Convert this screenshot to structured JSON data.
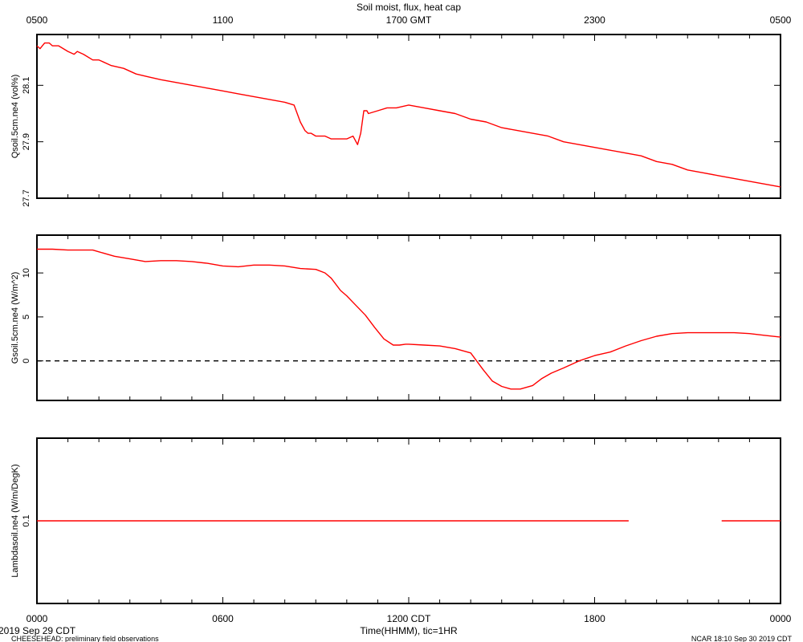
{
  "figure": {
    "title": "Soil moist, flux, heat cap",
    "top_axis_ticks": [
      "0500",
      "1100",
      "1700 GMT",
      "2300",
      "0500"
    ],
    "bottom_axis_ticks": [
      "0000",
      "0600",
      "1200 CDT",
      "1800",
      "0000"
    ],
    "xlabel": "Time(HHMM), tic=1HR",
    "date_left": "2019 Sep 29 CDT",
    "footer_left": "CHEESEHEAD: preliminary field observations",
    "footer_right": "NCAR 18:10 Sep 30 2019 CDT",
    "line_color": "#ff0000"
  },
  "chart_data": [
    {
      "type": "line",
      "ylabel": "Qsoil.5cm.ne4 (vol%)",
      "x_unit": "hours since 0000 CDT",
      "xlim": [
        0,
        24
      ],
      "ylim": [
        27.7,
        28.28
      ],
      "yticks": [
        "27.7",
        "27.9",
        "28.1"
      ],
      "ytick_values": [
        27.7,
        27.9,
        28.1
      ],
      "series": [
        {
          "x": [
            0,
            0.1,
            0.25,
            0.4,
            0.5,
            0.7,
            1.0,
            1.2,
            1.3,
            1.5,
            1.8,
            2.0,
            2.4,
            2.8,
            3.2,
            3.6,
            4.0,
            4.5,
            5.0,
            5.5,
            6.0,
            6.5,
            7.0,
            7.5,
            8.0,
            8.3,
            8.5,
            8.65,
            8.75,
            8.85,
            9.0,
            9.3,
            9.5,
            9.7,
            10.0,
            10.2,
            10.35,
            10.45,
            10.55,
            10.65,
            10.7,
            11.0,
            11.3,
            11.6,
            12.0,
            12.5,
            13.0,
            13.5,
            14.0,
            14.5,
            15.0,
            15.5,
            16.0,
            16.5,
            17.0,
            17.5,
            18.0,
            18.5,
            19.0,
            19.5,
            20.0,
            20.5,
            21.0,
            21.5,
            22.0,
            22.5,
            23.0,
            23.5,
            24.0
          ],
          "y": [
            28.24,
            28.23,
            28.25,
            28.25,
            28.24,
            28.24,
            28.22,
            28.21,
            28.22,
            28.21,
            28.19,
            28.19,
            28.17,
            28.16,
            28.14,
            28.13,
            28.12,
            28.11,
            28.1,
            28.09,
            28.08,
            28.07,
            28.06,
            28.05,
            28.04,
            28.03,
            27.97,
            27.94,
            27.93,
            27.93,
            27.92,
            27.92,
            27.91,
            27.91,
            27.91,
            27.92,
            27.89,
            27.93,
            28.01,
            28.01,
            28.0,
            28.01,
            28.02,
            28.02,
            28.03,
            28.02,
            28.01,
            28.0,
            27.98,
            27.97,
            27.95,
            27.94,
            27.93,
            27.92,
            27.9,
            27.89,
            27.88,
            27.87,
            27.86,
            27.85,
            27.83,
            27.82,
            27.8,
            27.79,
            27.78,
            27.77,
            27.76,
            27.75,
            27.74
          ]
        }
      ]
    },
    {
      "type": "line",
      "ylabel": "Gsoil.5cm.ne4 (W/m^2)",
      "x_unit": "hours since 0000 CDT",
      "xlim": [
        0,
        24
      ],
      "ylim": [
        -4.5,
        14.3
      ],
      "yticks": [
        "0",
        "5",
        "10"
      ],
      "ytick_values": [
        0,
        5,
        10
      ],
      "reference_line": 0,
      "series": [
        {
          "x": [
            0,
            0.5,
            1.0,
            1.5,
            1.8,
            2.0,
            2.5,
            3.0,
            3.5,
            4.0,
            4.5,
            5.0,
            5.5,
            6.0,
            6.5,
            7.0,
            7.5,
            8.0,
            8.5,
            9.0,
            9.3,
            9.5,
            9.8,
            10.0,
            10.3,
            10.6,
            10.9,
            11.2,
            11.5,
            11.7,
            11.9,
            12.0,
            12.5,
            13.0,
            13.5,
            14.0,
            14.4,
            14.7,
            15.0,
            15.3,
            15.6,
            16.0,
            16.3,
            16.6,
            17.0,
            17.5,
            18.0,
            18.5,
            19.0,
            19.5,
            20.0,
            20.5,
            21.0,
            21.5,
            22.0,
            22.5,
            23.0,
            23.5,
            24.0
          ],
          "y": [
            12.7,
            12.7,
            12.6,
            12.6,
            12.6,
            12.4,
            11.9,
            11.6,
            11.3,
            11.4,
            11.4,
            11.3,
            11.1,
            10.8,
            10.7,
            10.9,
            10.9,
            10.8,
            10.5,
            10.4,
            10.0,
            9.4,
            8.0,
            7.4,
            6.3,
            5.2,
            3.8,
            2.5,
            1.8,
            1.8,
            1.9,
            1.9,
            1.8,
            1.7,
            1.4,
            0.9,
            -1.0,
            -2.3,
            -2.9,
            -3.2,
            -3.2,
            -2.8,
            -2.0,
            -1.4,
            -0.8,
            0.0,
            0.6,
            1.0,
            1.7,
            2.3,
            2.8,
            3.1,
            3.2,
            3.2,
            3.2,
            3.2,
            3.1,
            2.9,
            2.7
          ]
        }
      ]
    },
    {
      "type": "line",
      "ylabel": "Lambdasoil.ne4 (W/m/DegK)",
      "x_unit": "hours since 0000 CDT",
      "xlim": [
        0,
        24
      ],
      "ylim": [
        0.0,
        0.2
      ],
      "yticks": [
        "0.1"
      ],
      "ytick_values": [
        0.1
      ],
      "series": [
        {
          "x": [
            0,
            19.1
          ],
          "y": [
            0.1,
            0.1
          ]
        },
        {
          "x": [
            22.1,
            24
          ],
          "y": [
            0.1,
            0.1
          ]
        }
      ]
    }
  ]
}
